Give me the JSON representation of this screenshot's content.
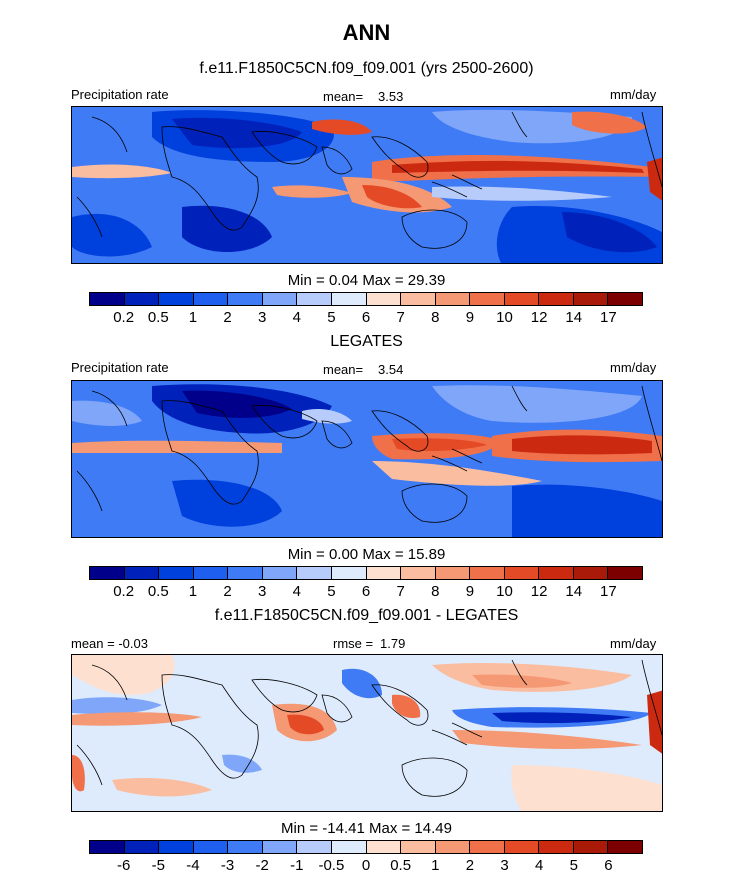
{
  "title": "ANN",
  "colorbar_precip": {
    "colors": [
      "#00008b",
      "#0022bb",
      "#0040dd",
      "#1f5ff0",
      "#3f7bf5",
      "#7fa6f8",
      "#b7ccfb",
      "#deebfd",
      "#fde0cf",
      "#fbbda0",
      "#f59874",
      "#f07049",
      "#e54a26",
      "#cc2a10",
      "#a91a08",
      "#7d0000"
    ],
    "ticks": [
      "0.2",
      "0.5",
      "1",
      "2",
      "3",
      "4",
      "5",
      "6",
      "7",
      "8",
      "9",
      "10",
      "12",
      "14",
      "17"
    ]
  },
  "colorbar_diff": {
    "colors": [
      "#00008b",
      "#0022bb",
      "#0040dd",
      "#1f5ff0",
      "#3f7bf5",
      "#7fa6f8",
      "#b7ccfb",
      "#deebfd",
      "#fde0cf",
      "#fbbda0",
      "#f59874",
      "#f07049",
      "#e54a26",
      "#cc2a10",
      "#a91a08",
      "#7d0000"
    ],
    "ticks": [
      "-6",
      "-5",
      "-4",
      "-3",
      "-2",
      "-1",
      "-0.5",
      "0",
      "0.5",
      "1",
      "2",
      "3",
      "4",
      "5",
      "6"
    ]
  },
  "panels": [
    {
      "title": "f.e11.F1850C5CN.f09_f09.001 (yrs 2500-2600)",
      "left_label": "Precipitation rate",
      "stat_label": "mean=",
      "stat_value": "3.53",
      "units": "mm/day",
      "minmax": "Min =   0.04 Max =  29.39"
    },
    {
      "title": "LEGATES",
      "left_label": "Precipitation rate",
      "stat_label": "mean=",
      "stat_value": "3.54",
      "units": "mm/day",
      "minmax": "Min =   0.00 Max =  15.89"
    },
    {
      "title": "f.e11.F1850C5CN.f09_f09.001 - LEGATES",
      "left_label": "mean =  -0.03",
      "stat_label": "rmse =",
      "stat_value": "1.79",
      "units": "mm/day",
      "minmax": "Min = -14.41 Max =  14.49"
    }
  ]
}
